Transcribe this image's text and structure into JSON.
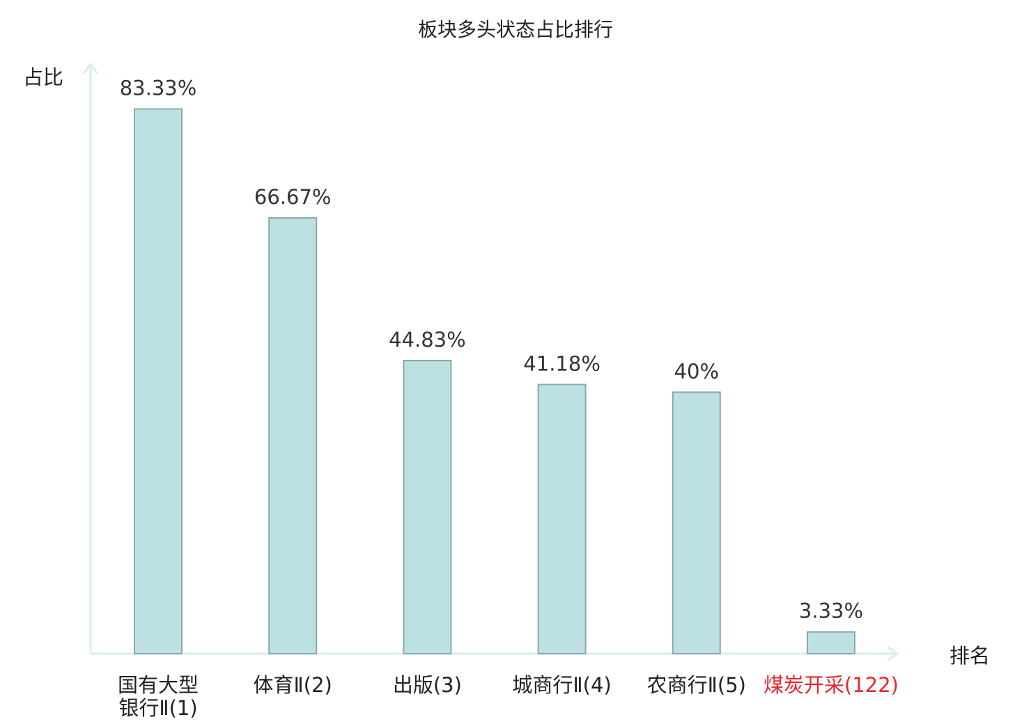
{
  "chart_data": {
    "type": "bar",
    "title": "板块多头状态占比排行",
    "ylabel": "占比",
    "xlabel": "排名",
    "ylim": [
      0,
      100
    ],
    "grid": false,
    "bar_color": "#bde0e2",
    "bar_border_color": "#8aa8aa",
    "axis_color": "#d9efee",
    "highlight_color": "#e8262a",
    "categories": [
      {
        "lines": [
          "国有大型",
          "银行Ⅱ(1)"
        ],
        "label": "国有大型银行Ⅱ(1)",
        "highlight": false
      },
      {
        "lines": [
          "体育Ⅱ(2)"
        ],
        "label": "体育Ⅱ(2)",
        "highlight": false
      },
      {
        "lines": [
          "出版(3)"
        ],
        "label": "出版(3)",
        "highlight": false
      },
      {
        "lines": [
          "城商行Ⅱ(4)"
        ],
        "label": "城商行Ⅱ(4)",
        "highlight": false
      },
      {
        "lines": [
          "农商行Ⅱ(5)"
        ],
        "label": "农商行Ⅱ(5)",
        "highlight": false
      },
      {
        "lines": [
          "煤炭开采(122)"
        ],
        "label": "煤炭开采(122)",
        "highlight": true
      }
    ],
    "values": [
      83.33,
      66.67,
      44.83,
      41.18,
      40,
      3.33
    ],
    "value_labels": [
      "83.33%",
      "66.67%",
      "44.83%",
      "41.18%",
      "40%",
      "3.33%"
    ]
  }
}
